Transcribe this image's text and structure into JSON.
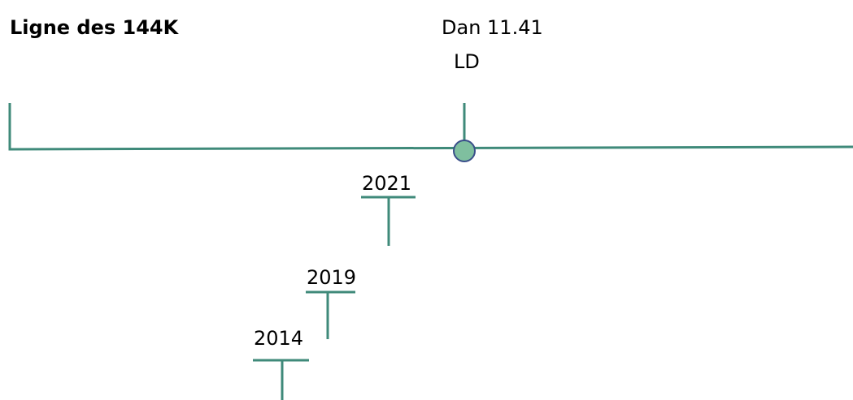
{
  "title": "Ligne des 144K",
  "marker": {
    "label": "Dan 11.41",
    "sublabel": "LD"
  },
  "years": [
    {
      "label": "2021"
    },
    {
      "label": "2019"
    },
    {
      "label": "2014"
    }
  ]
}
